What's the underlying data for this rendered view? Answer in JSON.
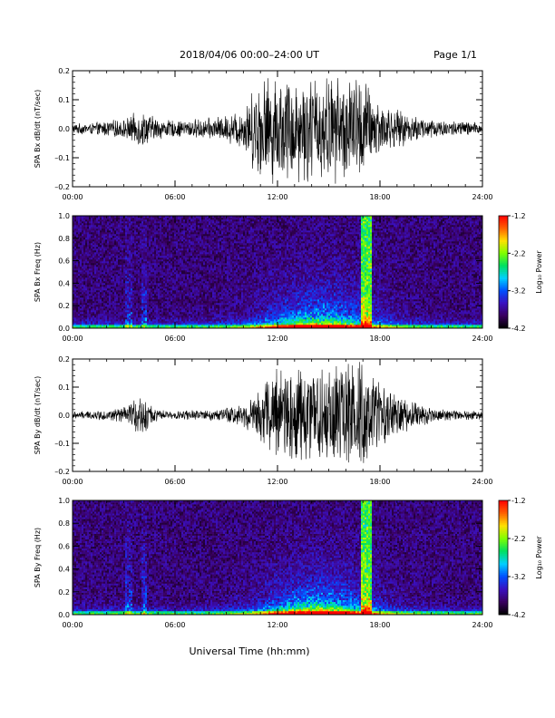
{
  "header": {
    "title": "2018/04/06  00:00–24:00 UT",
    "page": "Page 1/1"
  },
  "footer": {
    "xlabel": "Universal Time (hh:mm)"
  },
  "colorbar": {
    "label": "Log₁₀ Power",
    "ticks": [
      "-1.2",
      "-2.2",
      "-3.2",
      "-4.2"
    ],
    "range": [
      -4.2,
      -1.2
    ],
    "colors": [
      "#000000",
      "#3a0060",
      "#3a10c0",
      "#0050ff",
      "#00d0ff",
      "#00e060",
      "#80ff00",
      "#ffe000",
      "#ff6000",
      "#ff0000"
    ]
  },
  "chart_data": [
    {
      "type": "line",
      "ylabel": "SPA Bx dB/dt (nT/sec)",
      "xlim": [
        "00:00",
        "24:00"
      ],
      "xticks": [
        "00:00",
        "06:00",
        "12:00",
        "18:00",
        "24:00"
      ],
      "ylim": [
        -0.2,
        0.2
      ],
      "yticks": [
        "0.2",
        "0.1",
        "0.0",
        "–0.1",
        "–0.2"
      ],
      "envelope": {
        "hours": [
          0,
          1,
          2,
          3,
          4,
          5,
          6,
          7,
          8,
          9,
          10,
          11,
          12,
          13,
          14,
          15,
          16,
          17,
          18,
          19,
          20,
          21,
          22,
          23,
          24
        ],
        "amplitude": [
          0.02,
          0.02,
          0.03,
          0.035,
          0.07,
          0.04,
          0.03,
          0.035,
          0.04,
          0.05,
          0.08,
          0.2,
          0.2,
          0.2,
          0.2,
          0.2,
          0.2,
          0.2,
          0.1,
          0.07,
          0.05,
          0.04,
          0.03,
          0.03,
          0.02
        ]
      }
    },
    {
      "type": "heatmap",
      "ylabel": "SPA Bx Freq (Hz)",
      "xlim": [
        "00:00",
        "24:00"
      ],
      "xticks": [
        "00:00",
        "06:00",
        "12:00",
        "18:00",
        "24:00"
      ],
      "ylim": [
        0.0,
        1.0
      ],
      "yticks": [
        "1.0",
        "0.8",
        "0.6",
        "0.4",
        "0.2",
        "0.0"
      ],
      "zlabel": "Log₁₀ Power",
      "zlim": [
        -4.2,
        -1.2
      ]
    },
    {
      "type": "line",
      "ylabel": "SPA By dB/dt (nT/sec)",
      "xlim": [
        "00:00",
        "24:00"
      ],
      "xticks": [
        "00:00",
        "06:00",
        "12:00",
        "18:00",
        "24:00"
      ],
      "ylim": [
        -0.2,
        0.2
      ],
      "yticks": [
        "0.2",
        "0.1",
        "0.0",
        "–0.1",
        "–0.2"
      ],
      "envelope": {
        "hours": [
          0,
          1,
          2,
          3,
          4,
          5,
          6,
          7,
          8,
          9,
          10,
          11,
          12,
          13,
          14,
          15,
          16,
          17,
          18,
          19,
          20,
          21,
          22,
          23,
          24
        ],
        "amplitude": [
          0.015,
          0.015,
          0.02,
          0.03,
          0.08,
          0.02,
          0.015,
          0.02,
          0.02,
          0.03,
          0.05,
          0.1,
          0.2,
          0.2,
          0.2,
          0.2,
          0.2,
          0.2,
          0.12,
          0.08,
          0.05,
          0.03,
          0.02,
          0.02,
          0.015
        ]
      }
    },
    {
      "type": "heatmap",
      "ylabel": "SPA By Freq (Hz)",
      "xlim": [
        "00:00",
        "24:00"
      ],
      "xticks": [
        "00:00",
        "06:00",
        "12:00",
        "18:00",
        "24:00"
      ],
      "ylim": [
        0.0,
        1.0
      ],
      "yticks": [
        "1.0",
        "0.8",
        "0.6",
        "0.4",
        "0.2",
        "0.0"
      ],
      "zlabel": "Log₁₀ Power",
      "zlim": [
        -4.2,
        -1.2
      ]
    }
  ]
}
